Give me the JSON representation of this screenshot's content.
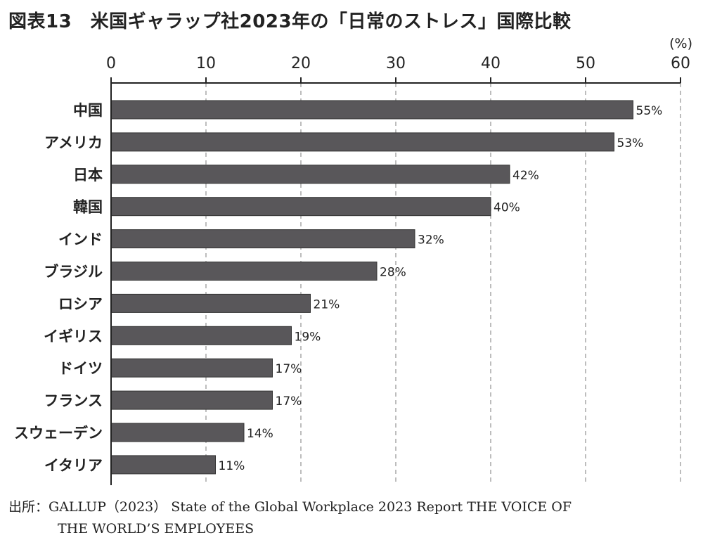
{
  "title": "図表13　米国ギャラップ社2023年の「日常のストレス」国際比較",
  "unit_label": "(%)",
  "source": {
    "label": "出所：",
    "line1": "GALLUP（2023） State of the Global Workplace 2023 Report THE VOICE OF",
    "line2": "THE WORLD’S EMPLOYEES"
  },
  "colors": {
    "bar": "#59575a",
    "grid": "#9a9a9a",
    "axis": "#222222",
    "text": "#222222"
  },
  "chart_data": {
    "type": "bar",
    "orientation": "horizontal",
    "categories": [
      "中国",
      "アメリカ",
      "日本",
      "韓国",
      "インド",
      "ブラジル",
      "ロシア",
      "イギリス",
      "ドイツ",
      "フランス",
      "スウェーデン",
      "イタリア"
    ],
    "values": [
      55,
      53,
      42,
      40,
      32,
      28,
      21,
      19,
      17,
      17,
      14,
      11
    ],
    "value_labels": [
      "55%",
      "53%",
      "42%",
      "40%",
      "32%",
      "28%",
      "21%",
      "19%",
      "17%",
      "17%",
      "14%",
      "11%"
    ],
    "xlim": [
      0,
      60
    ],
    "xticks": [
      0,
      10,
      20,
      30,
      40,
      50,
      60
    ],
    "xtick_labels": [
      "0",
      "10",
      "20",
      "30",
      "40",
      "50",
      "60"
    ],
    "axis_position": "top",
    "grid": "vertical dashed",
    "legend": "none"
  }
}
